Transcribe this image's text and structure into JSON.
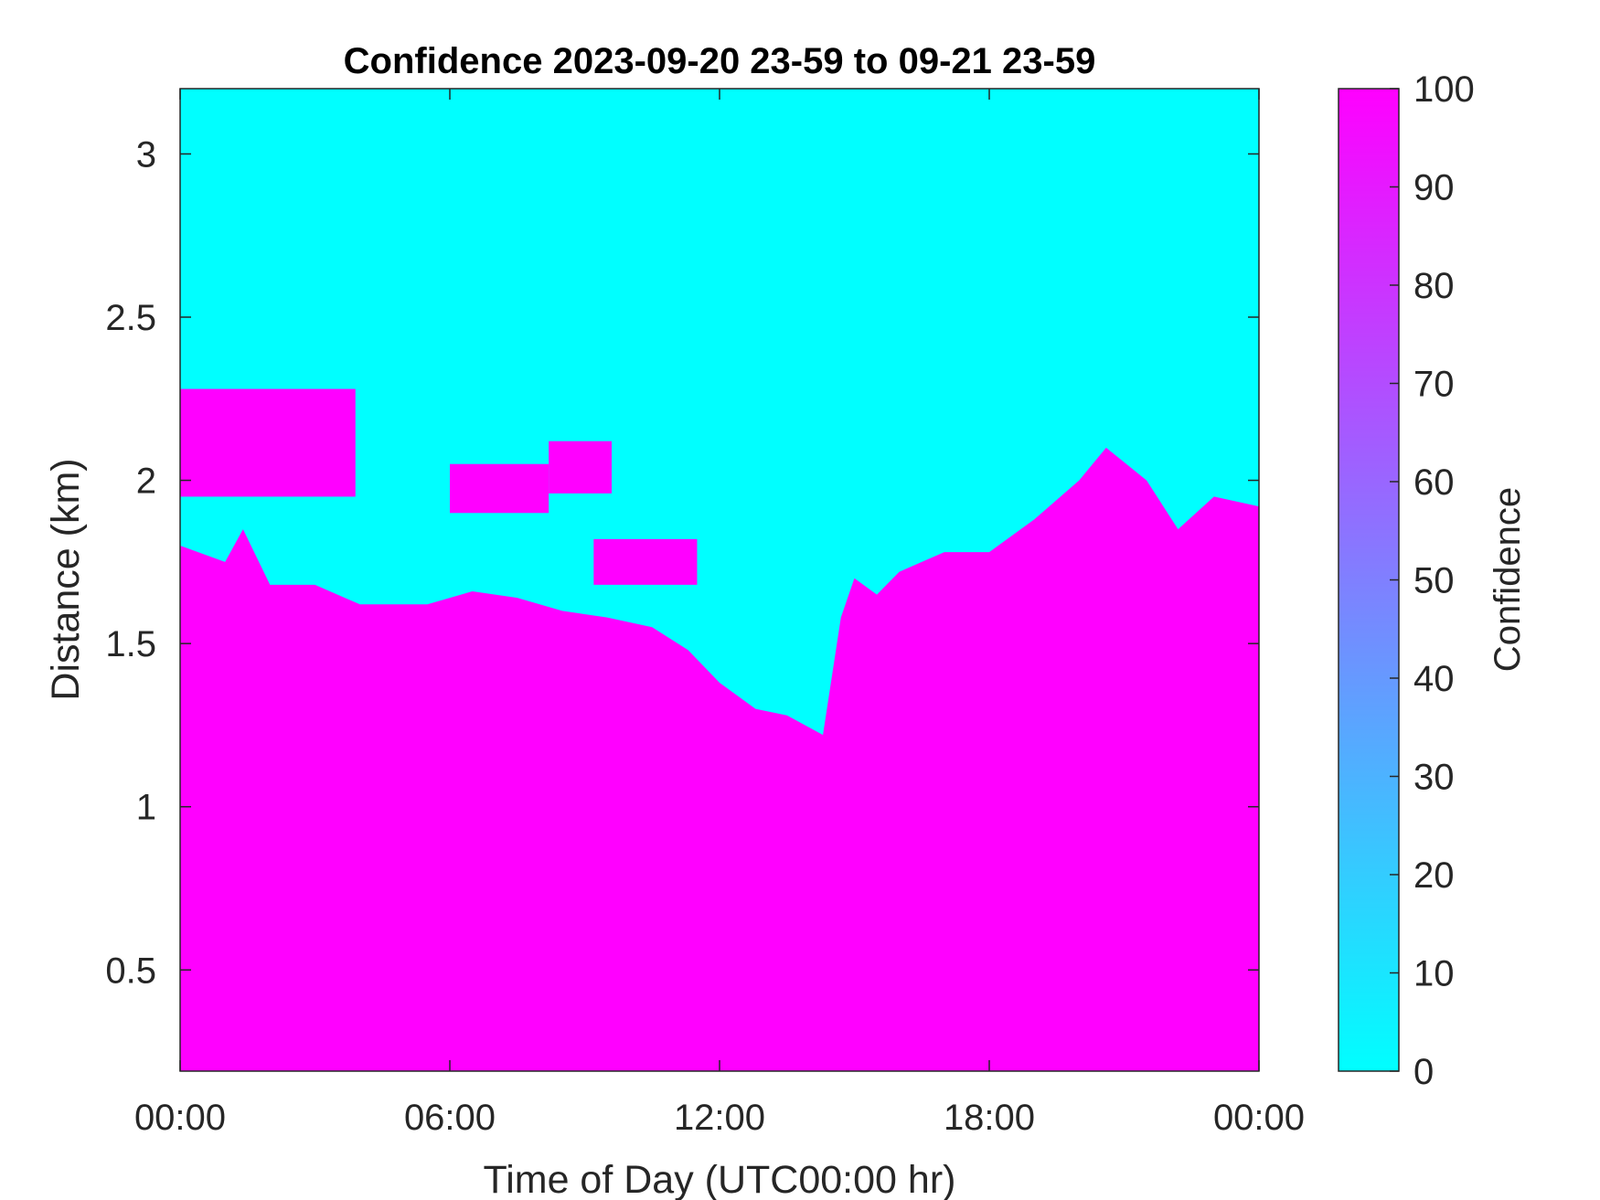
{
  "chart_data": {
    "type": "heatmap",
    "title": "Confidence 2023-09-20 23-59 to 09-21 23-59",
    "xlabel": "Time of Day (UTC00:00 hr)",
    "ylabel": "Distance (km)",
    "colorbar_label": "Confidence",
    "xlim": [
      0,
      24
    ],
    "ylim": [
      0.19,
      3.2
    ],
    "clim": [
      0,
      100
    ],
    "x_ticks": [
      {
        "value": 0,
        "label": "00:00"
      },
      {
        "value": 6,
        "label": "06:00"
      },
      {
        "value": 12,
        "label": "12:00"
      },
      {
        "value": 18,
        "label": "18:00"
      },
      {
        "value": 24,
        "label": "00:00"
      }
    ],
    "y_ticks": [
      {
        "value": 0.5,
        "label": "0.5"
      },
      {
        "value": 1,
        "label": "1"
      },
      {
        "value": 1.5,
        "label": "1.5"
      },
      {
        "value": 2,
        "label": "2"
      },
      {
        "value": 2.5,
        "label": "2.5"
      },
      {
        "value": 3,
        "label": "3"
      }
    ],
    "colorbar_ticks": [
      {
        "value": 0,
        "label": "0"
      },
      {
        "value": 10,
        "label": "10"
      },
      {
        "value": 20,
        "label": "20"
      },
      {
        "value": 30,
        "label": "30"
      },
      {
        "value": 40,
        "label": "40"
      },
      {
        "value": 50,
        "label": "50"
      },
      {
        "value": 60,
        "label": "60"
      },
      {
        "value": 70,
        "label": "70"
      },
      {
        "value": 80,
        "label": "80"
      },
      {
        "value": 90,
        "label": "90"
      },
      {
        "value": 100,
        "label": "100"
      }
    ],
    "colormap": [
      "#00ffff",
      "#ff00ff"
    ],
    "confidence_high": 100,
    "confidence_low": 0,
    "high_confidence_top_km": [
      {
        "t": 0.0,
        "km": 1.8
      },
      {
        "t": 1.0,
        "km": 1.75
      },
      {
        "t": 1.4,
        "km": 1.85
      },
      {
        "t": 2.0,
        "km": 1.68
      },
      {
        "t": 3.0,
        "km": 1.68
      },
      {
        "t": 4.0,
        "km": 1.62
      },
      {
        "t": 5.5,
        "km": 1.62
      },
      {
        "t": 6.5,
        "km": 1.66
      },
      {
        "t": 7.5,
        "km": 1.64
      },
      {
        "t": 8.5,
        "km": 1.6
      },
      {
        "t": 9.5,
        "km": 1.58
      },
      {
        "t": 10.5,
        "km": 1.55
      },
      {
        "t": 11.3,
        "km": 1.48
      },
      {
        "t": 12.0,
        "km": 1.38
      },
      {
        "t": 12.8,
        "km": 1.3
      },
      {
        "t": 13.5,
        "km": 1.28
      },
      {
        "t": 14.3,
        "km": 1.22
      },
      {
        "t": 14.7,
        "km": 1.58
      },
      {
        "t": 15.0,
        "km": 1.7
      },
      {
        "t": 15.5,
        "km": 1.65
      },
      {
        "t": 16.0,
        "km": 1.72
      },
      {
        "t": 17.0,
        "km": 1.78
      },
      {
        "t": 18.0,
        "km": 1.78
      },
      {
        "t": 19.0,
        "km": 1.88
      },
      {
        "t": 20.0,
        "km": 2.0
      },
      {
        "t": 20.6,
        "km": 2.1
      },
      {
        "t": 21.5,
        "km": 2.0
      },
      {
        "t": 22.2,
        "km": 1.85
      },
      {
        "t": 23.0,
        "km": 1.95
      },
      {
        "t": 24.0,
        "km": 1.92
      }
    ],
    "elevated_layer_km": [
      {
        "t0": 0.0,
        "t1": 3.9,
        "bottom_km": 1.95,
        "top_km": 2.28
      },
      {
        "t0": 6.0,
        "t1": 8.2,
        "bottom_km": 1.9,
        "top_km": 2.05
      },
      {
        "t0": 8.2,
        "t1": 9.6,
        "bottom_km": 1.96,
        "top_km": 2.12
      },
      {
        "t0": 9.2,
        "t1": 11.5,
        "bottom_km": 1.68,
        "top_km": 1.82
      }
    ]
  }
}
